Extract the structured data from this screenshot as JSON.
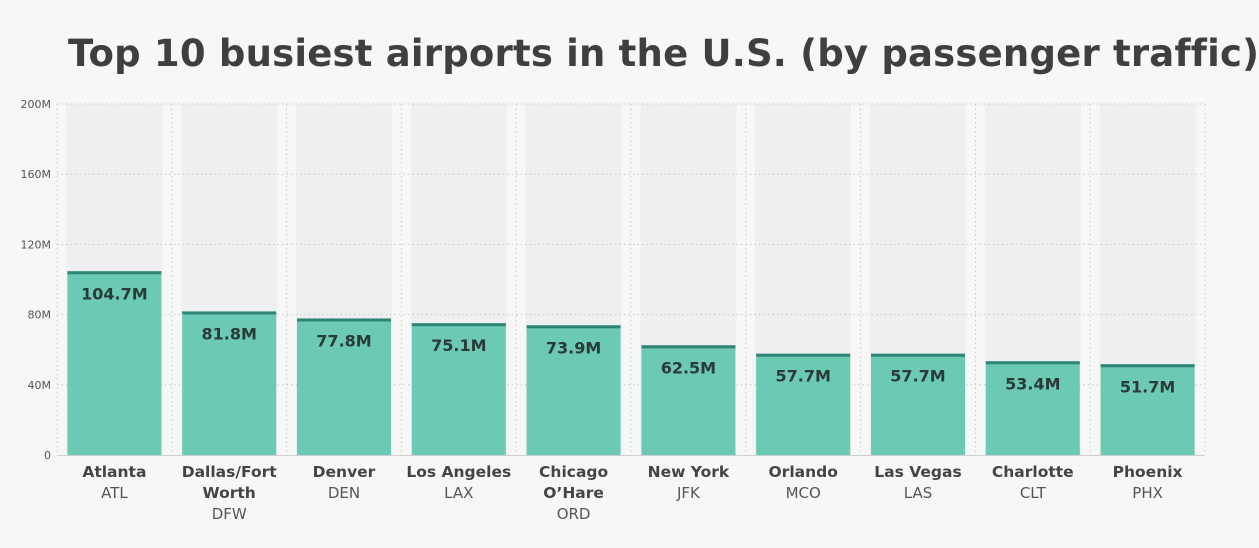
{
  "chart_data": {
    "type": "bar",
    "title": "Top 10 busiest airports in the U.S. (by passenger traffic)",
    "categories": [
      {
        "name": [
          "Atlanta"
        ],
        "code": "ATL"
      },
      {
        "name": [
          "Dallas/Fort",
          "Worth"
        ],
        "code": "DFW"
      },
      {
        "name": [
          "Denver"
        ],
        "code": "DEN"
      },
      {
        "name": [
          "Los Angeles"
        ],
        "code": "LAX"
      },
      {
        "name": [
          "Chicago",
          "O’Hare"
        ],
        "code": "ORD"
      },
      {
        "name": [
          "New York"
        ],
        "code": "JFK"
      },
      {
        "name": [
          "Orlando"
        ],
        "code": "MCO"
      },
      {
        "name": [
          "Las Vegas"
        ],
        "code": "LAS"
      },
      {
        "name": [
          "Charlotte"
        ],
        "code": "CLT"
      },
      {
        "name": [
          "Phoenix"
        ],
        "code": "PHX"
      }
    ],
    "values": [
      104.7,
      81.8,
      77.8,
      75.1,
      73.9,
      62.5,
      57.7,
      57.7,
      53.4,
      51.7
    ],
    "value_labels": [
      "104.7M",
      "81.8M",
      "77.8M",
      "75.1M",
      "73.9M",
      "62.5M",
      "57.7M",
      "57.7M",
      "53.4M",
      "51.7M"
    ],
    "ylim": [
      0,
      200
    ],
    "yticks": [
      0,
      40,
      80,
      120,
      160,
      200
    ],
    "ytick_labels": [
      "0",
      "40M",
      "80M",
      "120M",
      "160M",
      "200M"
    ],
    "xlabel": "",
    "ylabel": "",
    "grid": true,
    "colors": {
      "bar": "#6cc9b3",
      "bar_cap": "#2f8476",
      "track": "#eeeff1",
      "grid": "#c8c8c8",
      "background": "#f7f7f7"
    }
  }
}
